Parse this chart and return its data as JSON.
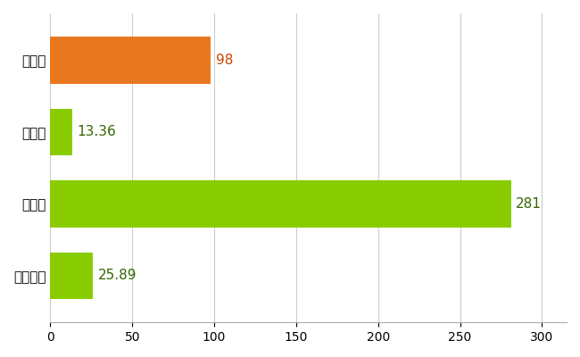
{
  "categories": [
    "豊平区",
    "県平均",
    "県最大",
    "全国平均"
  ],
  "values": [
    98,
    13.36,
    281,
    25.89
  ],
  "bar_colors": [
    "#E87820",
    "#88CC00",
    "#88CC00",
    "#88CC00"
  ],
  "value_labels": [
    "98",
    "13.36",
    "281",
    "25.89"
  ],
  "xlim": [
    0,
    315
  ],
  "xticks": [
    0,
    50,
    100,
    150,
    200,
    250,
    300
  ],
  "grid_color": "#cccccc",
  "background_color": "#ffffff",
  "bar_height": 0.65,
  "label_fontsize": 11,
  "tick_fontsize": 10,
  "value_label_color_orange": "#cc4400",
  "value_label_color_green": "#336600"
}
